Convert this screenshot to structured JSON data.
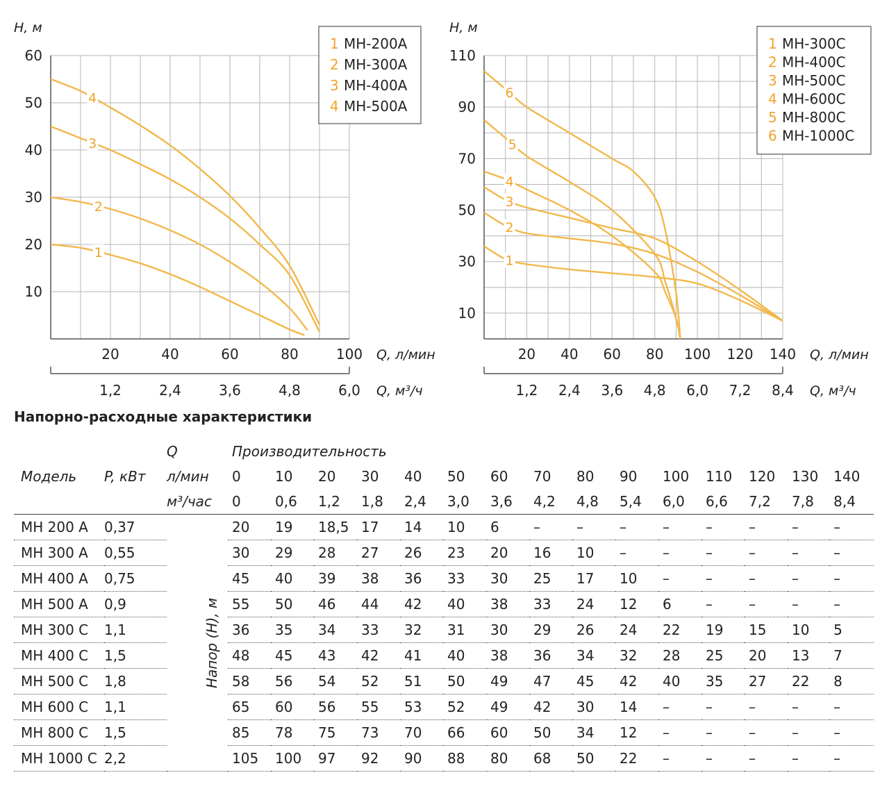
{
  "chart_data": [
    {
      "type": "line",
      "ylabel": "H, м",
      "xlabel": "Q, л/мин",
      "x2label": "Q, м³/ч",
      "xlim": [
        0,
        100
      ],
      "ylim": [
        0,
        60
      ],
      "x_ticks": [
        20,
        40,
        60,
        80,
        100
      ],
      "x2_ticks": [
        "1,2",
        "2,4",
        "3,6",
        "4,8",
        "6,0"
      ],
      "y_ticks": [
        10,
        20,
        30,
        40,
        50,
        60
      ],
      "grid": true,
      "legend_position": "top-right",
      "legend": [
        {
          "num": "1",
          "name": "МН-200А"
        },
        {
          "num": "2",
          "name": "МН-300А"
        },
        {
          "num": "3",
          "name": "МН-400А"
        },
        {
          "num": "4",
          "name": "МН-500А"
        }
      ],
      "series": [
        {
          "label": "1",
          "x": [
            0,
            10,
            20,
            30,
            40,
            50,
            60,
            70,
            80,
            85
          ],
          "y": [
            20,
            19.3,
            17.8,
            16,
            13.7,
            11,
            8,
            5,
            2,
            0.8
          ]
        },
        {
          "label": "2",
          "x": [
            0,
            10,
            20,
            30,
            40,
            50,
            60,
            70,
            80,
            86
          ],
          "y": [
            30,
            29,
            27.5,
            25.5,
            23,
            20,
            16.3,
            12,
            6.5,
            1.8
          ]
        },
        {
          "label": "3",
          "x": [
            0,
            10,
            20,
            30,
            40,
            50,
            60,
            70,
            80,
            90
          ],
          "y": [
            45,
            42.5,
            40,
            37,
            33.8,
            30,
            25.5,
            20,
            13.5,
            1.5
          ]
        },
        {
          "label": "4",
          "x": [
            0,
            10,
            20,
            30,
            40,
            50,
            60,
            70,
            80,
            90
          ],
          "y": [
            55,
            52.5,
            49,
            45.2,
            41,
            36,
            30.3,
            23.5,
            15.5,
            3
          ]
        }
      ]
    },
    {
      "type": "line",
      "ylabel": "H, м",
      "xlabel": "Q, л/мин",
      "x2label": "Q, м³/ч",
      "xlim": [
        0,
        140
      ],
      "ylim": [
        0,
        110
      ],
      "x_ticks": [
        20,
        40,
        60,
        80,
        100,
        120,
        140
      ],
      "x2_ticks": [
        "1,2",
        "2,4",
        "3,6",
        "4,8",
        "6,0",
        "7,2",
        "8,4"
      ],
      "y_ticks": [
        10,
        30,
        50,
        70,
        90,
        110
      ],
      "grid": true,
      "legend_position": "top-right",
      "legend": [
        {
          "num": "1",
          "name": "МН-300С"
        },
        {
          "num": "2",
          "name": "МН-400С"
        },
        {
          "num": "3",
          "name": "МН-500С"
        },
        {
          "num": "4",
          "name": "МН-600С"
        },
        {
          "num": "5",
          "name": "МН-800С"
        },
        {
          "num": "6",
          "name": "МН-1000С"
        }
      ],
      "series": [
        {
          "label": "1",
          "x": [
            0,
            10,
            20,
            40,
            60,
            80,
            100,
            120,
            140
          ],
          "y": [
            36,
            31,
            29,
            27,
            25.5,
            24,
            21.5,
            15,
            7
          ]
        },
        {
          "label": "2",
          "x": [
            0,
            10,
            20,
            40,
            60,
            80,
            100,
            120,
            140
          ],
          "y": [
            49,
            44,
            41,
            39,
            37,
            33,
            26,
            17,
            7
          ]
        },
        {
          "label": "3",
          "x": [
            0,
            10,
            20,
            40,
            60,
            80,
            100,
            120,
            140
          ],
          "y": [
            59,
            54,
            51,
            47,
            43,
            39,
            30,
            19,
            7
          ]
        },
        {
          "label": "4",
          "x": [
            0,
            10,
            20,
            40,
            60,
            80,
            85,
            90,
            92
          ],
          "y": [
            65,
            62,
            58,
            50,
            40,
            26,
            18,
            8,
            0
          ]
        },
        {
          "label": "5",
          "x": [
            0,
            10,
            20,
            40,
            60,
            80,
            85,
            90,
            92
          ],
          "y": [
            85,
            78,
            71,
            61,
            50,
            33,
            22,
            8,
            0
          ]
        },
        {
          "label": "6",
          "x": [
            0,
            10,
            20,
            40,
            60,
            70,
            80,
            85,
            90,
            92
          ],
          "y": [
            104,
            97,
            90,
            80,
            70,
            65,
            55,
            42,
            18,
            0
          ]
        }
      ]
    }
  ],
  "table": {
    "title": "Напорно-расходные характеристики",
    "col_model": "Модель",
    "col_power": "P, кВт",
    "q_label": "Q",
    "perf_label": "Производительность",
    "unit_lmin": "л/мин",
    "unit_m3": "м³/час",
    "head_label": "Напор (H), м",
    "lmin": [
      "0",
      "10",
      "20",
      "30",
      "40",
      "50",
      "60",
      "70",
      "80",
      "90",
      "100",
      "110",
      "120",
      "130",
      "140"
    ],
    "m3": [
      "0",
      "0,6",
      "1,2",
      "1,8",
      "2,4",
      "3,0",
      "3,6",
      "4,2",
      "4,8",
      "5,4",
      "6,0",
      "6,6",
      "7,2",
      "7,8",
      "8,4"
    ],
    "rows": [
      {
        "model": "МН 200 А",
        "power": "0,37",
        "values": [
          "20",
          "19",
          "18,5",
          "17",
          "14",
          "10",
          "6",
          "–",
          "–",
          "–",
          "–",
          "–",
          "–",
          "–",
          "–"
        ]
      },
      {
        "model": "МН 300 А",
        "power": "0,55",
        "values": [
          "30",
          "29",
          "28",
          "27",
          "26",
          "23",
          "20",
          "16",
          "10",
          "–",
          "–",
          "–",
          "–",
          "–",
          "–"
        ]
      },
      {
        "model": "МН 400 А",
        "power": "0,75",
        "values": [
          "45",
          "40",
          "39",
          "38",
          "36",
          "33",
          "30",
          "25",
          "17",
          "10",
          "–",
          "–",
          "–",
          "–",
          "–"
        ]
      },
      {
        "model": "МН 500 А",
        "power": "0,9",
        "values": [
          "55",
          "50",
          "46",
          "44",
          "42",
          "40",
          "38",
          "33",
          "24",
          "12",
          "6",
          "–",
          "–",
          "–",
          "–"
        ]
      },
      {
        "model": "МН 300 С",
        "power": "1,1",
        "values": [
          "36",
          "35",
          "34",
          "33",
          "32",
          "31",
          "30",
          "29",
          "26",
          "24",
          "22",
          "19",
          "15",
          "10",
          "5"
        ]
      },
      {
        "model": "МН 400 С",
        "power": "1,5",
        "values": [
          "48",
          "45",
          "43",
          "42",
          "41",
          "40",
          "38",
          "36",
          "34",
          "32",
          "28",
          "25",
          "20",
          "13",
          "7"
        ]
      },
      {
        "model": "МН 500 С",
        "power": "1,8",
        "values": [
          "58",
          "56",
          "54",
          "52",
          "51",
          "50",
          "49",
          "47",
          "45",
          "42",
          "40",
          "35",
          "27",
          "22",
          "8"
        ]
      },
      {
        "model": "МН 600 С",
        "power": "1,1",
        "values": [
          "65",
          "60",
          "56",
          "55",
          "53",
          "52",
          "49",
          "42",
          "30",
          "14",
          "–",
          "–",
          "–",
          "–",
          "–"
        ]
      },
      {
        "model": "МН 800 С",
        "power": "1,5",
        "values": [
          "85",
          "78",
          "75",
          "73",
          "70",
          "66",
          "60",
          "50",
          "34",
          "12",
          "–",
          "–",
          "–",
          "–",
          "–"
        ]
      },
      {
        "model": "МН 1000 С",
        "power": "2,2",
        "values": [
          "105",
          "100",
          "97",
          "92",
          "90",
          "88",
          "80",
          "68",
          "50",
          "22",
          "–",
          "–",
          "–",
          "–",
          "–"
        ]
      }
    ]
  },
  "colors": {
    "curve": "#f2b84b",
    "label": "#f0a32a",
    "grid": "#b5b5b5"
  }
}
